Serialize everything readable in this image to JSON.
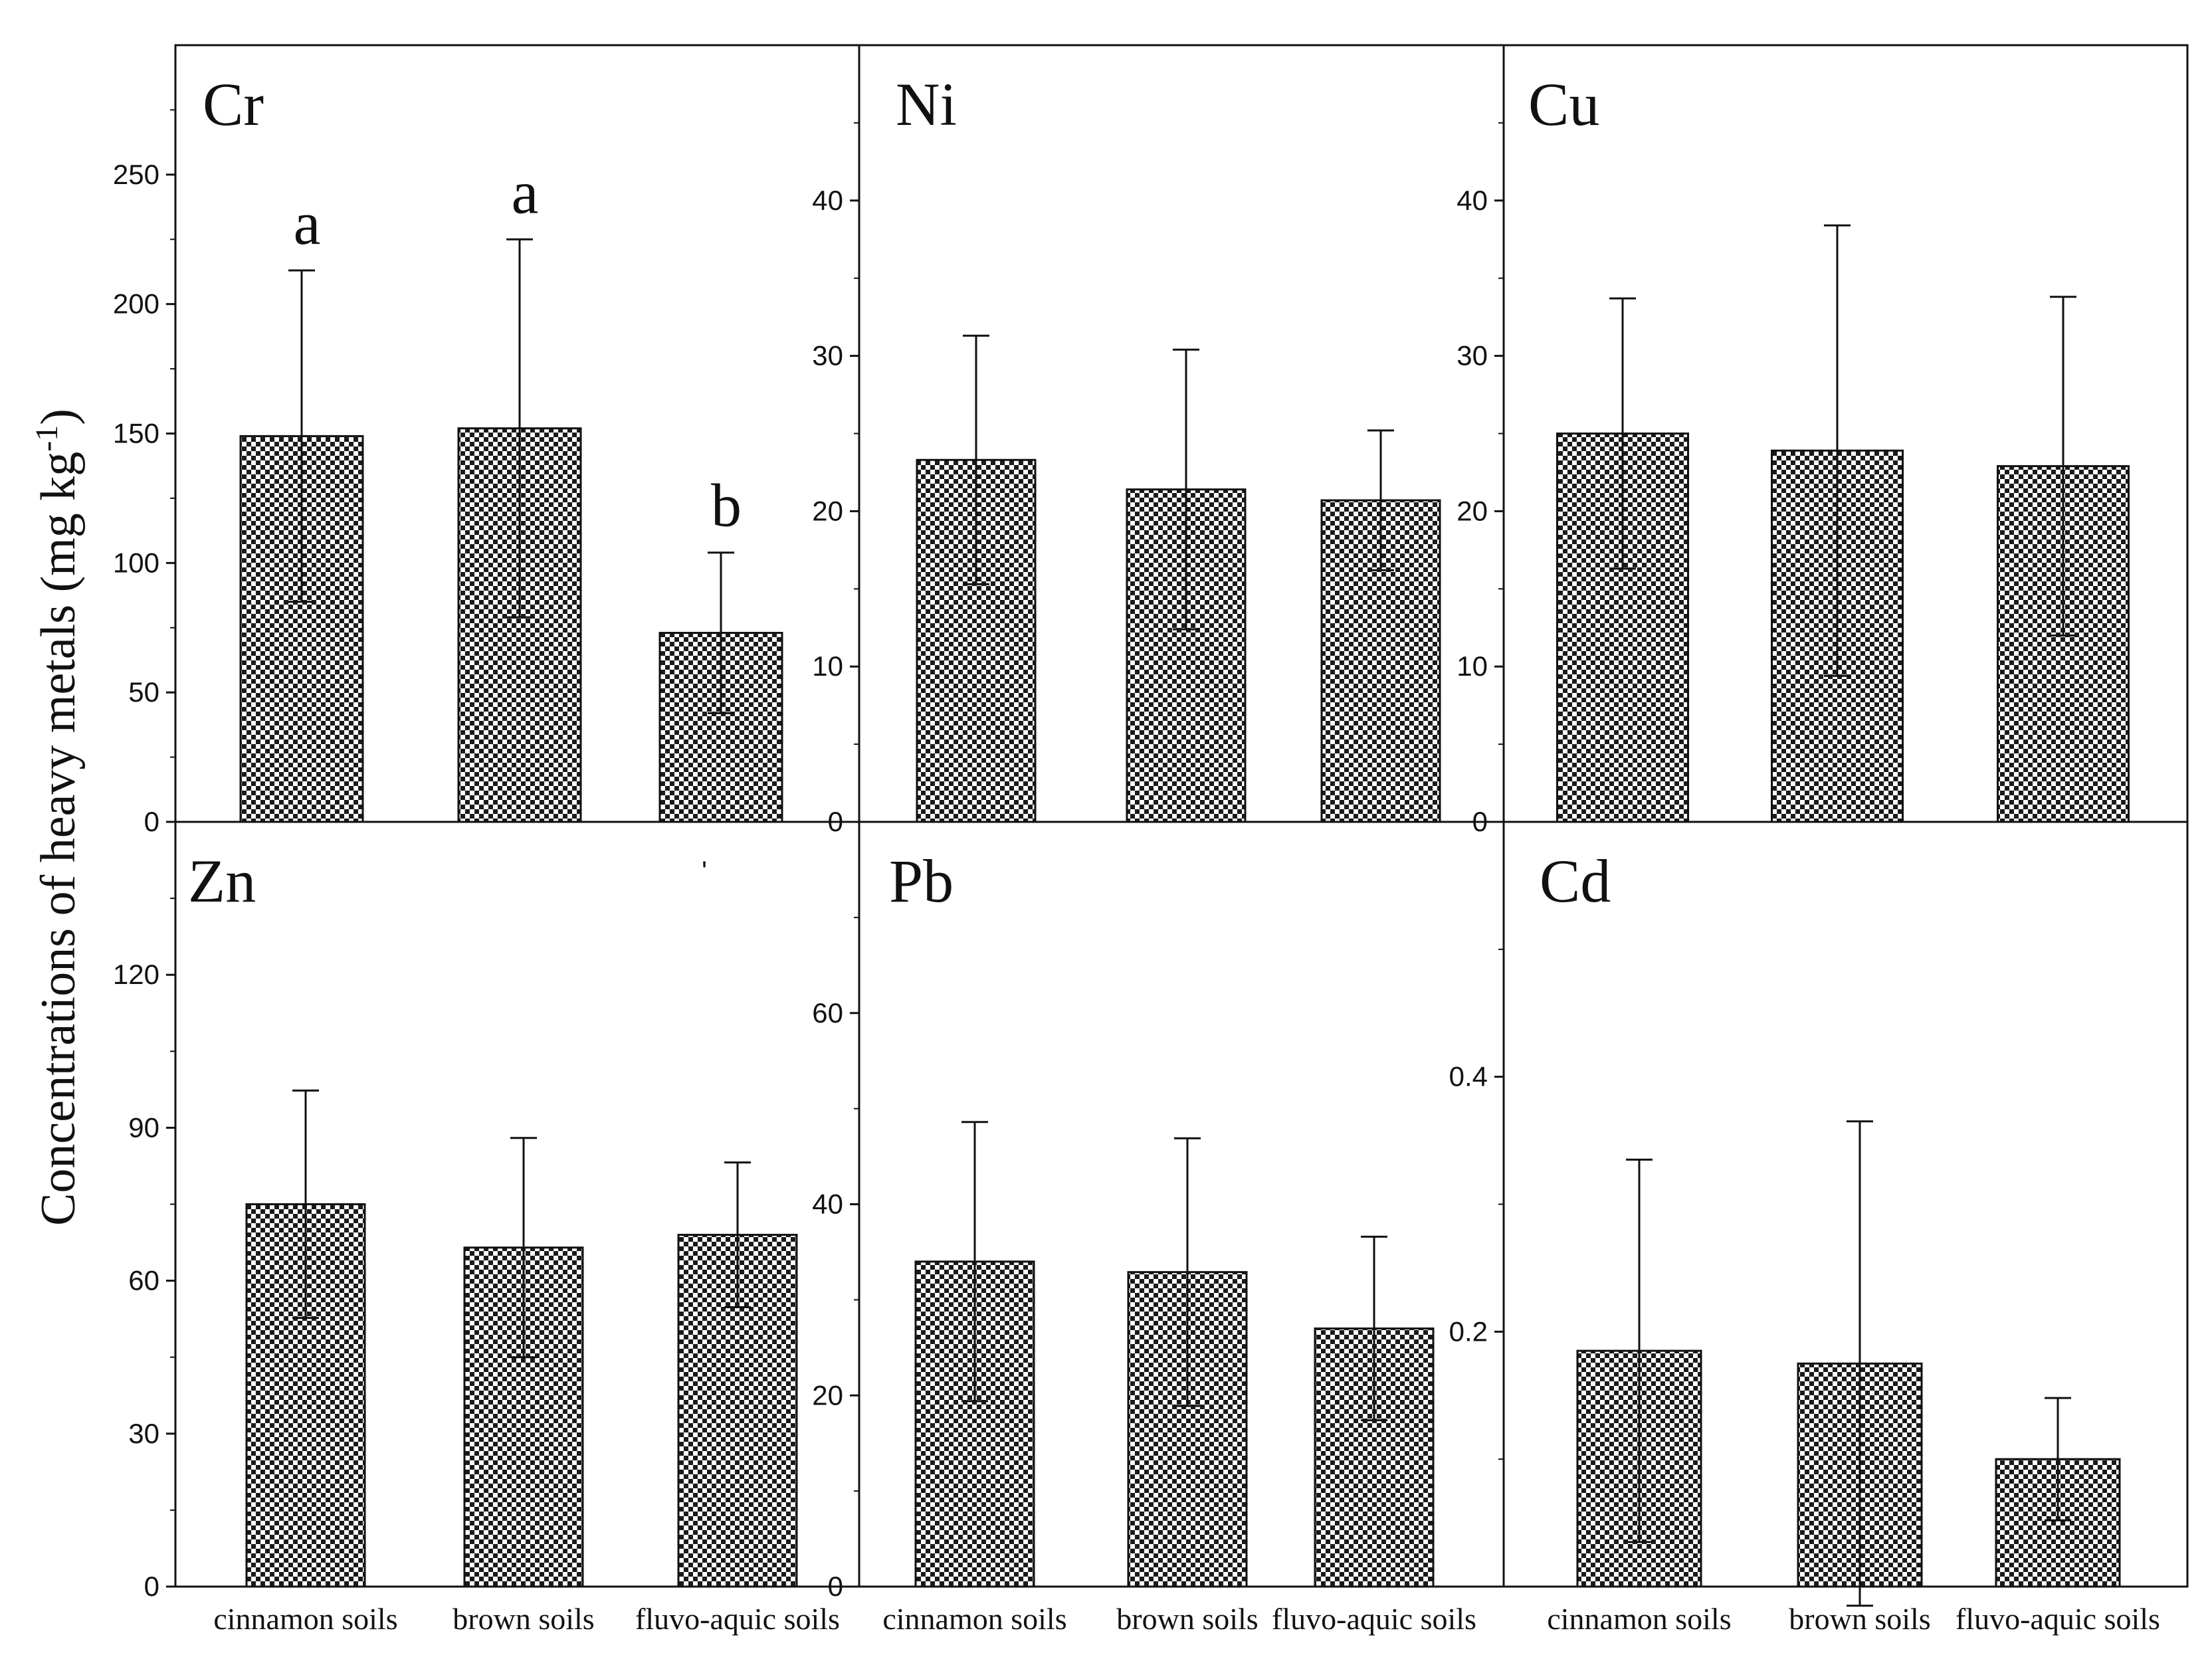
{
  "figure": {
    "ylabel_main": "Concentrations of heavy metals (mg kg",
    "ylabel_sup": "-1",
    "ylabel_close": ")",
    "stray_mark": "'"
  },
  "chart_data": [
    {
      "type": "bar",
      "title": "Cr",
      "categories": [
        "cinnamon soils",
        "brown soils",
        "fluvo-aquic soils"
      ],
      "values": [
        149,
        152,
        73
      ],
      "errors": [
        64,
        73,
        31
      ],
      "significance": [
        "a",
        "a",
        "b"
      ],
      "ylim": [
        0,
        300
      ],
      "yticks": [
        0,
        50,
        100,
        150,
        200,
        250
      ],
      "ytick_labels": [
        "0",
        "50",
        "100",
        "150",
        "200",
        "250"
      ]
    },
    {
      "type": "bar",
      "title": "Ni",
      "categories": [
        "cinnamon soils",
        "brown soils",
        "fluvo-aquic soils"
      ],
      "values": [
        23.3,
        21.4,
        20.7
      ],
      "errors": [
        8.0,
        9.0,
        4.5
      ],
      "significance": [],
      "ylim": [
        0,
        50
      ],
      "yticks": [
        0,
        10,
        20,
        30,
        40
      ],
      "ytick_labels": [
        "0",
        "10",
        "20",
        "30",
        "40"
      ]
    },
    {
      "type": "bar",
      "title": "Cu",
      "categories": [
        "cinnamon soils",
        "brown soils",
        "fluvo-aquic soils"
      ],
      "values": [
        25.0,
        23.9,
        22.9
      ],
      "errors": [
        8.7,
        14.5,
        10.9
      ],
      "significance": [],
      "ylim": [
        0,
        50
      ],
      "yticks": [
        0,
        10,
        20,
        30,
        40
      ],
      "ytick_labels": [
        "0",
        "10",
        "20",
        "30",
        "40"
      ]
    },
    {
      "type": "bar",
      "title": "Zn",
      "categories": [
        "cinnamon soils",
        "brown soils",
        "fluvo-aquic soils"
      ],
      "values": [
        75,
        66.5,
        69
      ],
      "errors": [
        22.3,
        21.5,
        14.2
      ],
      "significance": [],
      "ylim": [
        0,
        150
      ],
      "yticks": [
        0,
        30,
        60,
        90,
        120
      ],
      "ytick_labels": [
        "0",
        "30",
        "60",
        "90",
        "120"
      ]
    },
    {
      "type": "bar",
      "title": "Pb",
      "categories": [
        "cinnamon soils",
        "brown soils",
        "fluvo-aquic soils"
      ],
      "values": [
        34.0,
        32.9,
        27.0
      ],
      "errors": [
        14.6,
        14.0,
        9.6
      ],
      "significance": [],
      "ylim": [
        0,
        80
      ],
      "yticks": [
        0,
        20,
        40,
        60
      ],
      "ytick_labels": [
        "0",
        "20",
        "40",
        "60"
      ]
    },
    {
      "type": "bar",
      "title": "Cd",
      "categories": [
        "cinnamon soils",
        "brown soils",
        "fluvo-aquic soils"
      ],
      "values": [
        0.185,
        0.175,
        0.1
      ],
      "errors": [
        0.15,
        0.19,
        0.048
      ],
      "significance": [],
      "ylim": [
        0,
        0.6
      ],
      "yticks": [
        0.2,
        0.4
      ],
      "ytick_labels": [
        "0.2",
        "0.4"
      ]
    }
  ]
}
